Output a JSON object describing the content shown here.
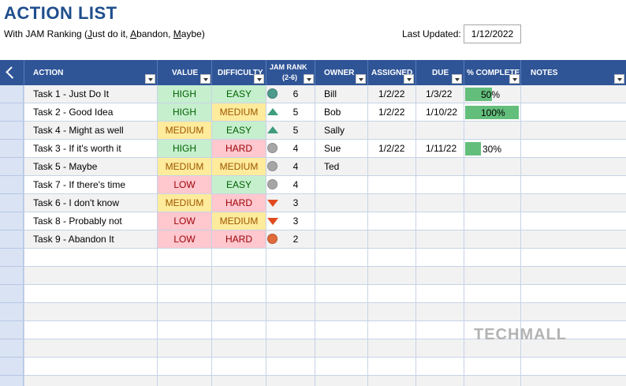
{
  "title": "ACTION LIST",
  "subtitle": {
    "prefix": "With JAM Ranking (",
    "j": "J",
    "j_rest": "ust do it, ",
    "a": "A",
    "a_rest": "bandon, ",
    "m": "M",
    "m_rest": "aybe)"
  },
  "last_updated": {
    "label": "Last Updated:",
    "value": "1/12/2022"
  },
  "columns": {
    "action": "ACTION",
    "value": "VALUE",
    "difficulty": "DIFFICULTY",
    "jam_rank_line1": "JAM RANK",
    "jam_rank_line2": "(2-6)",
    "owner": "OWNER",
    "assigned": "ASSIGNED",
    "due": "DUE",
    "complete": "% COMPLETE",
    "notes": "NOTES"
  },
  "colors": {
    "header": "#2f5597",
    "high": "#c6efce",
    "medium": "#ffeb9c",
    "low": "#ffc7ce",
    "progress": "#63be7b"
  },
  "tasks": [
    {
      "action": "Task 1 - Just Do It",
      "value": "HIGH",
      "difficulty": "EASY",
      "icon": "circle-teal",
      "rank": "6",
      "owner": "Bill",
      "assigned": "1/2/22",
      "due": "1/3/22",
      "complete": "50%",
      "complete_frac": 0.5
    },
    {
      "action": "Task 2 - Good Idea",
      "value": "HIGH",
      "difficulty": "MEDIUM",
      "icon": "triangle-up",
      "rank": "5",
      "owner": "Bob",
      "assigned": "1/2/22",
      "due": "1/10/22",
      "complete": "100%",
      "complete_frac": 1.0
    },
    {
      "action": "Task 4 - Might as well",
      "value": "MEDIUM",
      "difficulty": "EASY",
      "icon": "triangle-up",
      "rank": "5",
      "owner": "Sally",
      "assigned": "",
      "due": "",
      "complete": "",
      "complete_frac": 0
    },
    {
      "action": "Task 3 - If it's worth it",
      "value": "HIGH",
      "difficulty": "HARD",
      "icon": "circle-gray",
      "rank": "4",
      "owner": "Sue",
      "assigned": "1/2/22",
      "due": "1/11/22",
      "complete": "30%",
      "complete_frac": 0.3
    },
    {
      "action": "Task 5 - Maybe",
      "value": "MEDIUM",
      "difficulty": "MEDIUM",
      "icon": "circle-gray",
      "rank": "4",
      "owner": "Ted",
      "assigned": "",
      "due": "",
      "complete": "",
      "complete_frac": 0
    },
    {
      "action": "Task 7 - If there's time",
      "value": "LOW",
      "difficulty": "EASY",
      "icon": "circle-gray",
      "rank": "4",
      "owner": "",
      "assigned": "",
      "due": "",
      "complete": "",
      "complete_frac": 0
    },
    {
      "action": "Task 6 - I don't know",
      "value": "MEDIUM",
      "difficulty": "HARD",
      "icon": "triangle-down",
      "rank": "3",
      "owner": "",
      "assigned": "",
      "due": "",
      "complete": "",
      "complete_frac": 0
    },
    {
      "action": "Task 8 - Probably not",
      "value": "LOW",
      "difficulty": "MEDIUM",
      "icon": "triangle-down",
      "rank": "3",
      "owner": "",
      "assigned": "",
      "due": "",
      "complete": "",
      "complete_frac": 0
    },
    {
      "action": "Task 9 - Abandon It",
      "value": "LOW",
      "difficulty": "HARD",
      "icon": "circle-orange",
      "rank": "2",
      "owner": "",
      "assigned": "",
      "due": "",
      "complete": "",
      "complete_frac": 0
    }
  ],
  "watermark": "TECHMALL"
}
